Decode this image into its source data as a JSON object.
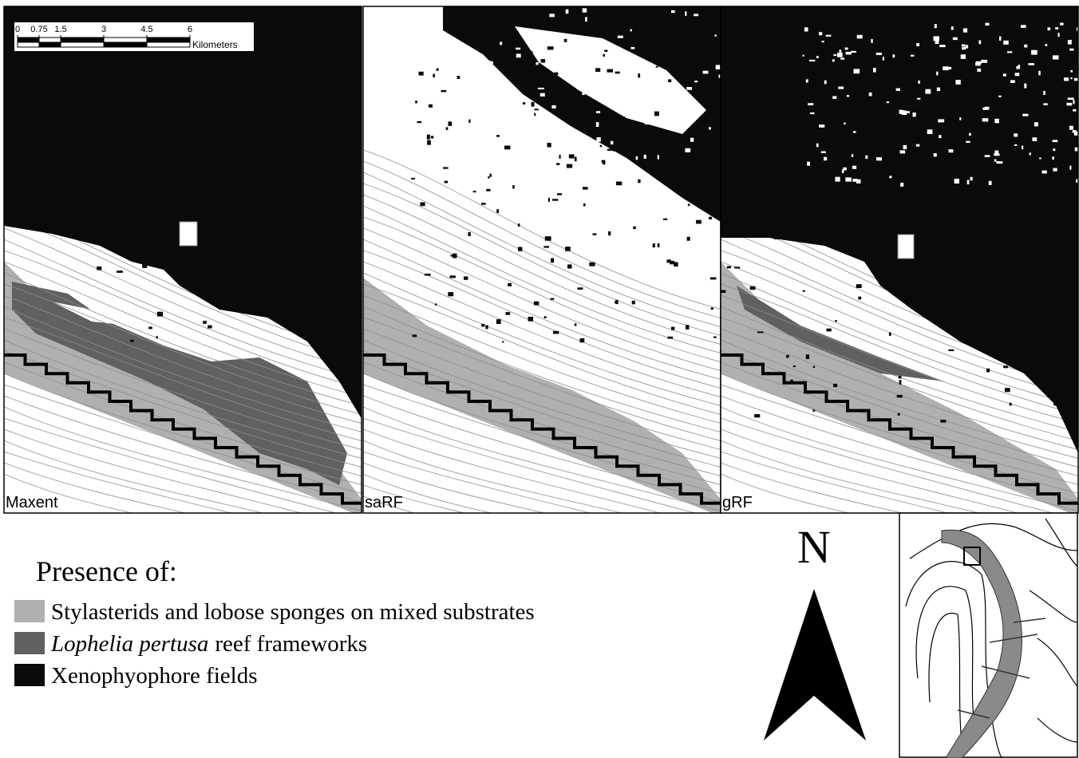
{
  "panels": [
    {
      "label": "Maxent"
    },
    {
      "label": "saRF"
    },
    {
      "label": "gRF"
    }
  ],
  "scale_bar": {
    "ticks": [
      0,
      0.75,
      1.5,
      3,
      4.5,
      6
    ],
    "unit": "Kilometers"
  },
  "legend": {
    "title": "Presence of:",
    "items": [
      {
        "label": "Stylasterids and lobose sponges on mixed substrates",
        "color": "#b0b0b0"
      },
      {
        "species": "Lophelia pertusa",
        "label": "reef frameworks",
        "color": "#606060"
      },
      {
        "label": "Xenophyophore fields",
        "color": "#0a0a0a"
      }
    ]
  },
  "north_arrow": {
    "label": "N"
  }
}
